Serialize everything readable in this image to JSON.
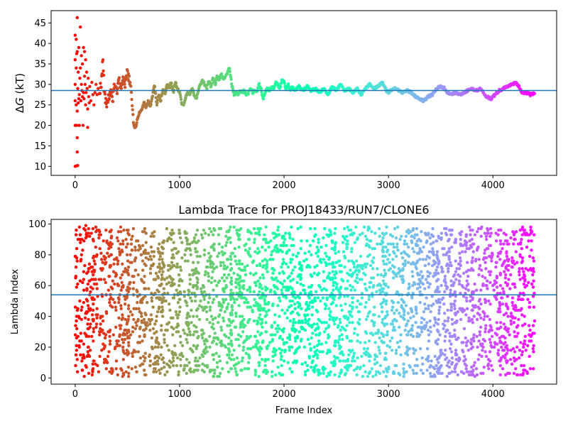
{
  "chart_data": [
    {
      "id": "delta_g",
      "type": "scatter",
      "title": "",
      "xlabel": "",
      "ylabel_prefix": "Δ",
      "ylabel_var": "G",
      "ylabel_suffix": " (kT)",
      "xlim": [
        -230,
        4610
      ],
      "ylim": [
        7.8,
        48.0
      ],
      "xticks": [
        0,
        1000,
        2000,
        3000,
        4000
      ],
      "yticks": [
        10,
        15,
        20,
        25,
        30,
        35,
        40,
        45
      ],
      "hline": 28.5,
      "hline_color": "#1f77b4",
      "colormap": "rainbow_reversed",
      "n_frames": 4400,
      "early_points": [
        [
          0,
          10.0
        ],
        [
          0,
          20.0
        ],
        [
          0,
          26.0
        ],
        [
          0,
          30.0
        ],
        [
          0,
          36.0
        ],
        [
          0,
          42.0
        ],
        [
          10,
          10.1
        ],
        [
          10,
          25.0
        ],
        [
          10,
          34.0
        ],
        [
          10,
          41.0
        ],
        [
          15,
          20.0
        ],
        [
          15,
          37.5
        ],
        [
          20,
          13.5
        ],
        [
          20,
          17.0
        ],
        [
          20,
          23.5
        ],
        [
          20,
          38.0
        ],
        [
          20,
          46.3
        ],
        [
          25,
          10.2
        ],
        [
          25,
          29.0
        ],
        [
          30,
          25.5
        ],
        [
          30,
          33.0
        ],
        [
          35,
          26.5
        ],
        [
          35,
          39.0
        ],
        [
          40,
          20.0
        ],
        [
          40,
          27.5
        ],
        [
          45,
          31.5
        ],
        [
          50,
          34.0
        ],
        [
          50,
          44.0
        ],
        [
          55,
          26.0
        ],
        [
          60,
          30.0
        ],
        [
          60,
          37.0
        ],
        [
          65,
          28.5
        ],
        [
          70,
          27.0
        ],
        [
          70,
          35.0
        ],
        [
          75,
          20.0
        ],
        [
          80,
          28.0
        ],
        [
          80,
          39.0
        ],
        [
          85,
          26.5
        ],
        [
          90,
          32.0
        ],
        [
          90,
          38.0
        ],
        [
          95,
          30.0
        ],
        [
          100,
          25.0
        ],
        [
          100,
          36.0
        ],
        [
          105,
          28.0
        ],
        [
          110,
          33.0
        ],
        [
          115,
          29.0
        ],
        [
          120,
          19.5
        ],
        [
          120,
          24.0
        ],
        [
          125,
          31.5
        ],
        [
          130,
          27.0
        ],
        [
          135,
          25.5
        ],
        [
          140,
          29.5
        ],
        [
          150,
          26.0
        ],
        [
          160,
          30.5
        ],
        [
          170,
          27.5
        ],
        [
          180,
          25.0
        ],
        [
          190,
          28.0
        ],
        [
          200,
          30.0
        ],
        [
          210,
          27.5
        ],
        [
          220,
          29.0
        ]
      ],
      "trace_knots": [
        [
          230,
          28.0
        ],
        [
          250,
          30.0
        ],
        [
          265,
          36.5
        ],
        [
          280,
          28.0
        ],
        [
          300,
          25.0
        ],
        [
          320,
          27.0
        ],
        [
          340,
          29.0
        ],
        [
          360,
          26.5
        ],
        [
          380,
          30.5
        ],
        [
          400,
          28.5
        ],
        [
          420,
          31.0
        ],
        [
          440,
          29.0
        ],
        [
          460,
          32.0
        ],
        [
          480,
          30.0
        ],
        [
          500,
          33.0
        ],
        [
          520,
          31.0
        ],
        [
          540,
          28.0
        ],
        [
          560,
          20.0
        ],
        [
          580,
          19.5
        ],
        [
          600,
          22.0
        ],
        [
          620,
          23.5
        ],
        [
          640,
          24.0
        ],
        [
          660,
          25.5
        ],
        [
          680,
          24.5
        ],
        [
          700,
          26.0
        ],
        [
          720,
          24.5
        ],
        [
          740,
          27.0
        ],
        [
          760,
          30.0
        ],
        [
          780,
          25.0
        ],
        [
          800,
          27.5
        ],
        [
          820,
          26.0
        ],
        [
          840,
          29.0
        ],
        [
          860,
          27.5
        ],
        [
          880,
          30.0
        ],
        [
          900,
          29.0
        ],
        [
          920,
          30.5
        ],
        [
          940,
          28.0
        ],
        [
          960,
          30.5
        ],
        [
          980,
          29.0
        ],
        [
          1000,
          28.0
        ],
        [
          1020,
          25.5
        ],
        [
          1040,
          25.0
        ],
        [
          1060,
          27.0
        ],
        [
          1080,
          28.0
        ],
        [
          1100,
          27.5
        ],
        [
          1120,
          29.0
        ],
        [
          1140,
          27.5
        ],
        [
          1160,
          26.5
        ],
        [
          1180,
          28.5
        ],
        [
          1200,
          30.0
        ],
        [
          1220,
          31.0
        ],
        [
          1240,
          30.0
        ],
        [
          1260,
          29.0
        ],
        [
          1280,
          31.0
        ],
        [
          1300,
          29.5
        ],
        [
          1320,
          31.5
        ],
        [
          1340,
          30.0
        ],
        [
          1360,
          32.0
        ],
        [
          1380,
          31.0
        ],
        [
          1400,
          32.5
        ],
        [
          1420,
          31.5
        ],
        [
          1440,
          32.0
        ],
        [
          1460,
          33.0
        ],
        [
          1475,
          34.0
        ],
        [
          1490,
          32.0
        ],
        [
          1500,
          30.0
        ],
        [
          1520,
          27.5
        ],
        [
          1540,
          28.0
        ],
        [
          1560,
          27.5
        ],
        [
          1580,
          28.5
        ],
        [
          1600,
          28.0
        ],
        [
          1620,
          28.5
        ],
        [
          1640,
          27.5
        ],
        [
          1660,
          28.0
        ],
        [
          1680,
          29.0
        ],
        [
          1700,
          28.0
        ],
        [
          1720,
          28.5
        ],
        [
          1740,
          28.0
        ],
        [
          1760,
          30.0
        ],
        [
          1780,
          29.0
        ],
        [
          1800,
          26.5
        ],
        [
          1820,
          28.0
        ],
        [
          1840,
          29.0
        ],
        [
          1860,
          28.5
        ],
        [
          1880,
          29.5
        ],
        [
          1900,
          29.0
        ],
        [
          1920,
          30.5
        ],
        [
          1940,
          30.0
        ],
        [
          1960,
          29.0
        ],
        [
          1980,
          31.0
        ],
        [
          2000,
          30.5
        ],
        [
          2020,
          29.0
        ],
        [
          2040,
          30.0
        ],
        [
          2060,
          28.5
        ],
        [
          2080,
          29.5
        ],
        [
          2100,
          28.5
        ],
        [
          2140,
          29.5
        ],
        [
          2180,
          28.5
        ],
        [
          2220,
          29.5
        ],
        [
          2260,
          28.5
        ],
        [
          2300,
          29.0
        ],
        [
          2340,
          28.0
        ],
        [
          2380,
          29.0
        ],
        [
          2420,
          27.5
        ],
        [
          2440,
          28.5
        ],
        [
          2460,
          29.5
        ],
        [
          2500,
          28.5
        ],
        [
          2540,
          30.0
        ],
        [
          2580,
          28.5
        ],
        [
          2620,
          29.0
        ],
        [
          2660,
          28.0
        ],
        [
          2700,
          29.0
        ],
        [
          2740,
          27.5
        ],
        [
          2780,
          29.0
        ],
        [
          2820,
          30.0
        ],
        [
          2860,
          29.0
        ],
        [
          2900,
          29.5
        ],
        [
          2940,
          30.5
        ],
        [
          2980,
          28.5
        ],
        [
          3000,
          28.0
        ],
        [
          3020,
          28.5
        ],
        [
          3060,
          29.0
        ],
        [
          3100,
          28.5
        ],
        [
          3140,
          28.0
        ],
        [
          3180,
          28.5
        ],
        [
          3220,
          28.0
        ],
        [
          3260,
          27.0
        ],
        [
          3300,
          26.5
        ],
        [
          3340,
          26.0
        ],
        [
          3380,
          27.0
        ],
        [
          3420,
          27.5
        ],
        [
          3460,
          29.0
        ],
        [
          3500,
          29.5
        ],
        [
          3540,
          29.0
        ],
        [
          3560,
          28.0
        ],
        [
          3600,
          27.5
        ],
        [
          3640,
          28.0
        ],
        [
          3680,
          27.5
        ],
        [
          3720,
          28.0
        ],
        [
          3760,
          28.5
        ],
        [
          3800,
          29.0
        ],
        [
          3840,
          28.5
        ],
        [
          3880,
          29.0
        ],
        [
          3920,
          27.5
        ],
        [
          3940,
          27.0
        ],
        [
          3980,
          26.5
        ],
        [
          4020,
          27.5
        ],
        [
          4060,
          28.5
        ],
        [
          4100,
          29.0
        ],
        [
          4140,
          29.5
        ],
        [
          4180,
          30.0
        ],
        [
          4220,
          30.5
        ],
        [
          4260,
          29.0
        ],
        [
          4280,
          28.0
        ],
        [
          4320,
          28.0
        ],
        [
          4360,
          27.5
        ],
        [
          4400,
          28.0
        ]
      ]
    },
    {
      "id": "lambda_trace",
      "type": "scatter",
      "title": "Lambda Trace for PROJ18433/RUN7/CLONE6",
      "xlabel": "Frame Index",
      "ylabel": "Lambda Index",
      "xlim": [
        -230,
        4610
      ],
      "ylim": [
        -4.0,
        103.0
      ],
      "xticks": [
        0,
        1000,
        2000,
        3000,
        4000
      ],
      "yticks": [
        0,
        20,
        40,
        60,
        80,
        100
      ],
      "hline": 54.0,
      "hline_color": "#1f77b4",
      "colormap": "rainbow_reversed",
      "n_frames": 4400,
      "n_points": 3600,
      "value_range": [
        0,
        99
      ]
    }
  ],
  "tick_labels": {
    "x": [
      "0",
      "1000",
      "2000",
      "3000",
      "4000"
    ],
    "y_top": [
      "10",
      "15",
      "20",
      "25",
      "30",
      "35",
      "40",
      "45"
    ],
    "y_bottom": [
      "0",
      "20",
      "40",
      "60",
      "80",
      "100"
    ]
  }
}
